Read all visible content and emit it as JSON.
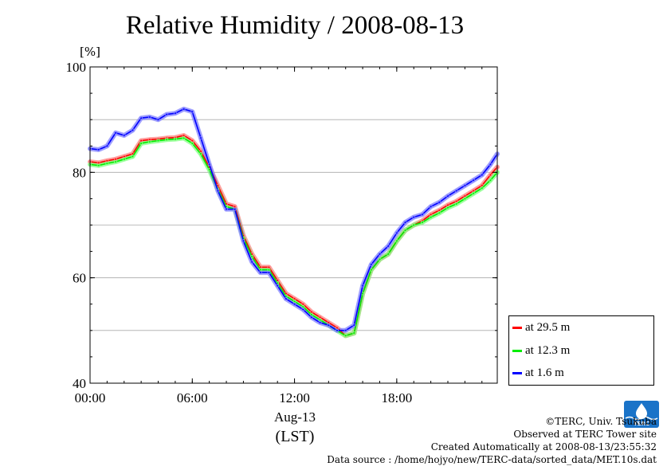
{
  "chart_data": {
    "type": "line",
    "title": "Relative Humidity / 2008-08-13",
    "ylabel": "[%]",
    "xlabel": "Aug-13",
    "xunit": "(LST)",
    "ylim": [
      40,
      100
    ],
    "xlim_hours": [
      0,
      23.9
    ],
    "y_ticks": [
      "40",
      "60",
      "80",
      "100"
    ],
    "x_ticks": [
      {
        "hour": 0,
        "label": "00:00"
      },
      {
        "hour": 6,
        "label": "06:00"
      },
      {
        "hour": 12,
        "label": "12:00"
      },
      {
        "hour": 18,
        "label": "18:00"
      }
    ],
    "grid": true,
    "legend_position": "right-bottom",
    "x_hours": [
      0,
      0.5,
      1,
      1.5,
      2,
      2.5,
      3,
      3.5,
      4,
      4.5,
      5,
      5.5,
      6,
      6.5,
      7,
      7.5,
      8,
      8.5,
      9,
      9.5,
      10,
      10.5,
      11,
      11.5,
      12,
      12.5,
      13,
      13.5,
      14,
      14.5,
      15,
      15.5,
      16,
      16.5,
      17,
      17.5,
      18,
      18.5,
      19,
      19.5,
      20,
      20.5,
      21,
      21.5,
      22,
      22.5,
      23,
      23.5,
      23.9
    ],
    "series": [
      {
        "name": "at 29.5 m",
        "color": "#ff0000",
        "halo": "#ff8080",
        "values": [
          82.0,
          81.8,
          82.2,
          82.5,
          83.0,
          83.5,
          86.0,
          86.2,
          86.3,
          86.5,
          86.6,
          87.0,
          86.0,
          84.0,
          81.0,
          77.5,
          74.0,
          73.5,
          68.0,
          64.5,
          62.0,
          62.0,
          59.5,
          57.0,
          56.0,
          55.0,
          53.5,
          52.5,
          51.5,
          50.5,
          49.0,
          49.5,
          57.0,
          61.5,
          63.5,
          64.5,
          67.0,
          69.0,
          70.0,
          70.8,
          72.0,
          72.8,
          73.8,
          74.5,
          75.5,
          76.5,
          77.5,
          79.5,
          81.0
        ]
      },
      {
        "name": "at 12.3 m",
        "color": "#00ee00",
        "halo": "#80ff80",
        "values": [
          81.5,
          81.3,
          81.7,
          82.0,
          82.5,
          83.0,
          85.5,
          85.8,
          86.0,
          86.2,
          86.3,
          86.5,
          85.5,
          83.5,
          80.5,
          76.8,
          73.5,
          73.0,
          67.5,
          64.0,
          61.5,
          61.5,
          59.0,
          56.5,
          55.5,
          54.5,
          53.0,
          52.0,
          51.0,
          50.0,
          49.0,
          49.5,
          57.0,
          61.5,
          63.5,
          64.5,
          67.0,
          69.0,
          70.0,
          70.5,
          71.5,
          72.3,
          73.3,
          74.0,
          75.0,
          76.0,
          77.0,
          78.5,
          80.0
        ]
      },
      {
        "name": "at 1.6 m",
        "color": "#0000ff",
        "halo": "#8080ff",
        "values": [
          84.5,
          84.3,
          85.0,
          87.5,
          87.0,
          88.0,
          90.3,
          90.5,
          90.0,
          91.0,
          91.2,
          92.0,
          91.5,
          86.5,
          81.5,
          76.5,
          73.0,
          73.0,
          67.0,
          63.0,
          61.0,
          61.0,
          58.5,
          56.0,
          55.0,
          54.0,
          52.5,
          51.5,
          51.0,
          50.0,
          50.0,
          51.0,
          58.5,
          62.5,
          64.5,
          66.0,
          68.5,
          70.5,
          71.5,
          72.0,
          73.5,
          74.3,
          75.5,
          76.5,
          77.5,
          78.5,
          79.5,
          81.5,
          83.5
        ]
      }
    ]
  },
  "legend": [
    {
      "label": "at 29.5 m"
    },
    {
      "label": "at 12.3 m"
    },
    {
      "label": "at 1.6 m"
    }
  ],
  "footer": {
    "copyright": "©TERC, Univ. Tsukuba",
    "site": "Observed at TERC Tower site",
    "created": "Created Automatically at 2008-08-13/23:55:32",
    "source": "Data source : /home/hojyo/new/TERC-data/sorted_data/MET.10s.dat"
  },
  "logo_text": "TERC",
  "colors": {
    "grid": "#aaaaaa",
    "logo": "#1a73c8"
  }
}
